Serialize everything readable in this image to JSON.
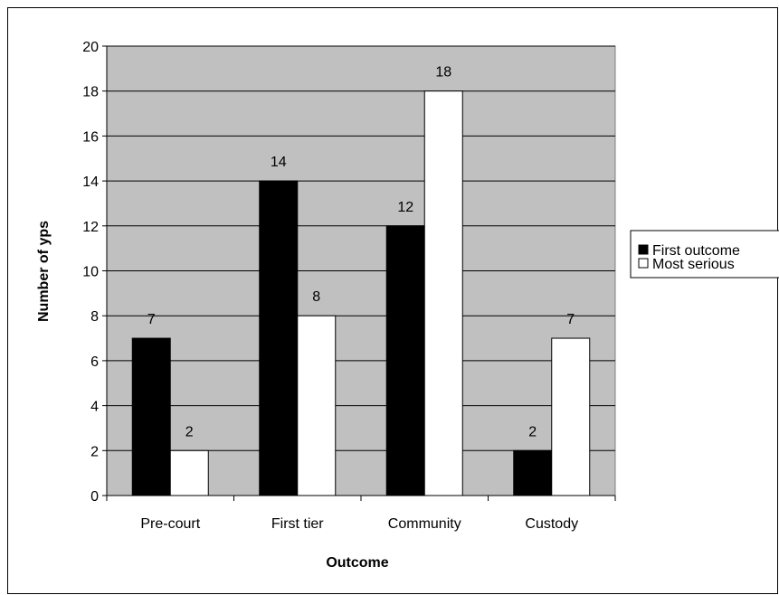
{
  "chart_data": {
    "type": "bar",
    "title": "",
    "xlabel": "Outcome",
    "ylabel": "Number of yps",
    "categories": [
      "Pre-court",
      "First tier",
      "Community",
      "Custody"
    ],
    "series": [
      {
        "name": "First outcome",
        "values": [
          7,
          14,
          12,
          2
        ],
        "color": "#000000"
      },
      {
        "name": "Most serious",
        "values": [
          2,
          8,
          18,
          7
        ],
        "color": "#ffffff"
      }
    ],
    "ylim": [
      0,
      20
    ],
    "yticks": [
      0,
      2,
      4,
      6,
      8,
      10,
      12,
      14,
      16,
      18,
      20
    ],
    "grid": true,
    "legend_position": "right",
    "plot_background": "#c0c0c0"
  }
}
